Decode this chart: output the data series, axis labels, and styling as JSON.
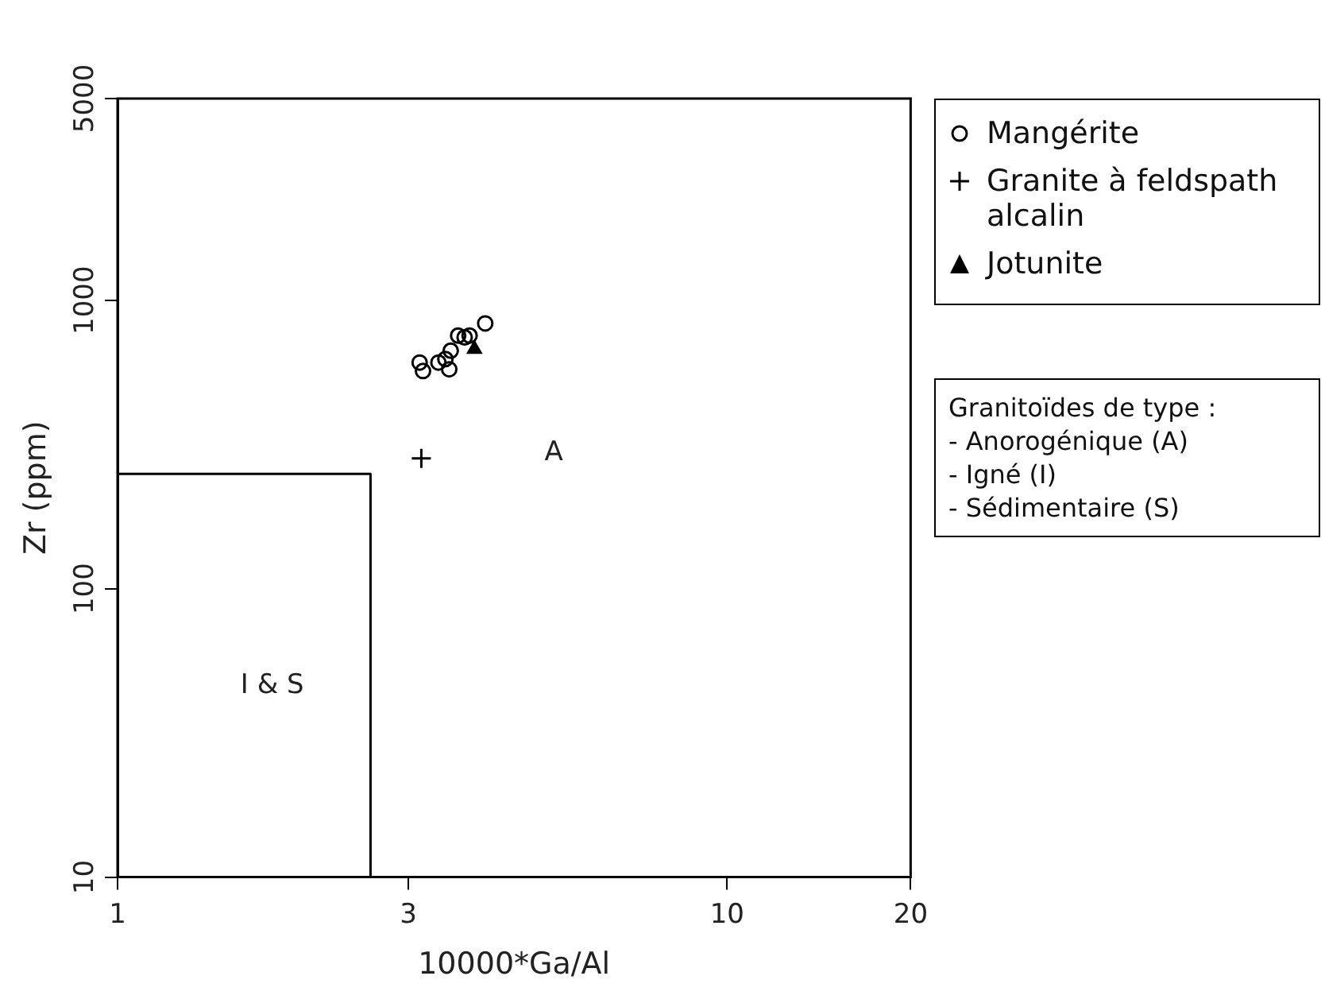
{
  "chart_data": {
    "type": "scatter",
    "xlabel": "10000*Ga/Al",
    "ylabel": "Zr (ppm)",
    "log": "xy",
    "xlim": [
      1,
      20
    ],
    "xticks": [
      1,
      3,
      10,
      20
    ],
    "ylim": [
      10,
      5000
    ],
    "yticks": [
      10,
      100,
      1000,
      5000
    ],
    "grid": false,
    "legend": "right",
    "series": [
      {
        "name": "Mangérite",
        "color": "#000000",
        "marker": "circle",
        "x": [
          4.01,
          3.62,
          3.78,
          3.52,
          3.45,
          3.36,
          3.13,
          3.17,
          3.5,
          3.71
        ],
        "values": [
          831,
          754,
          754,
          668,
          625,
          608,
          608,
          568,
          576,
          743
        ]
      },
      {
        "name": "Granite à feldspath alcalin",
        "color": "#000000",
        "marker": "cross",
        "x": [
          3.15
        ],
        "values": [
          283
        ]
      },
      {
        "name": "Jotunite",
        "color": "#000000",
        "marker": "triangle",
        "x": [
          3.85
        ],
        "values": [
          677
        ]
      },
      {
        "type": "line",
        "color": "#000000",
        "marker": "none",
        "x": [
          1,
          2.6,
          2.6
        ],
        "values": [
          250,
          250,
          10
        ]
      }
    ],
    "annotations": [
      "A",
      "I & S",
      "Granitoïdes de type :",
      "- Anorogénique (A)",
      "- Igné (I)",
      "- Sédimentaire (S)"
    ]
  }
}
